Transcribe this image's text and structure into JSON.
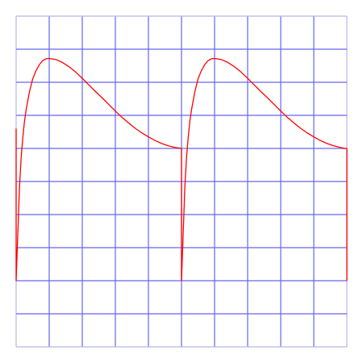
{
  "chart_data": {
    "type": "line",
    "title": "",
    "xlabel": "",
    "ylabel": "",
    "grid": true,
    "xlim": [
      0,
      10
    ],
    "ylim": [
      -2,
      8
    ],
    "x_grid_divisions": 10,
    "y_grid_divisions": 10,
    "series": [
      {
        "color": "#ff0000",
        "segments": [
          {
            "x": [
              0,
              0,
              0.05,
              0.1,
              0.15,
              0.2,
              0.25,
              0.3,
              0.4,
              0.5,
              0.6,
              0.7,
              0.8,
              0.9,
              1,
              1.2,
              1.4,
              1.6,
              1.8,
              2,
              2.2,
              2.4,
              2.6,
              2.8,
              3,
              3.2,
              3.4,
              3.6,
              3.8,
              4,
              4.2,
              4.4,
              4.6,
              4.8,
              5,
              5
            ],
            "y": [
              4.6,
              0,
              1.4,
              2.8,
              3.7,
              4.3,
              4.8,
              5.15,
              5.7,
              6.1,
              6.35,
              6.53,
              6.65,
              6.71,
              6.72,
              6.69,
              6.6,
              6.47,
              6.31,
              6.12,
              5.92,
              5.72,
              5.53,
              5.33,
              5.13,
              4.94,
              4.77,
              4.61,
              4.47,
              4.35,
              4.24,
              4.15,
              4.08,
              4.03,
              4.0,
              0
            ]
          },
          {
            "x": [
              5,
              5.05,
              5.1,
              5.15,
              5.2,
              5.25,
              5.3,
              5.4,
              5.5,
              5.6,
              5.7,
              5.8,
              5.9,
              6,
              6.2,
              6.4,
              6.6,
              6.8,
              7,
              7.2,
              7.4,
              7.6,
              7.8,
              8,
              8.2,
              8.4,
              8.6,
              8.8,
              9,
              9.2,
              9.4,
              9.6,
              9.8,
              9.95,
              10,
              10
            ],
            "y": [
              0,
              1.4,
              2.8,
              3.7,
              4.3,
              4.8,
              5.15,
              5.7,
              6.1,
              6.35,
              6.53,
              6.65,
              6.71,
              6.72,
              6.69,
              6.6,
              6.47,
              6.31,
              6.12,
              5.92,
              5.72,
              5.53,
              5.33,
              5.13,
              4.94,
              4.77,
              4.61,
              4.47,
              4.35,
              4.24,
              4.15,
              4.08,
              4.03,
              4.0,
              4.0,
              0
            ]
          }
        ]
      }
    ],
    "grid_color": "#6666ee",
    "frame_color": "#b8b8e8"
  }
}
